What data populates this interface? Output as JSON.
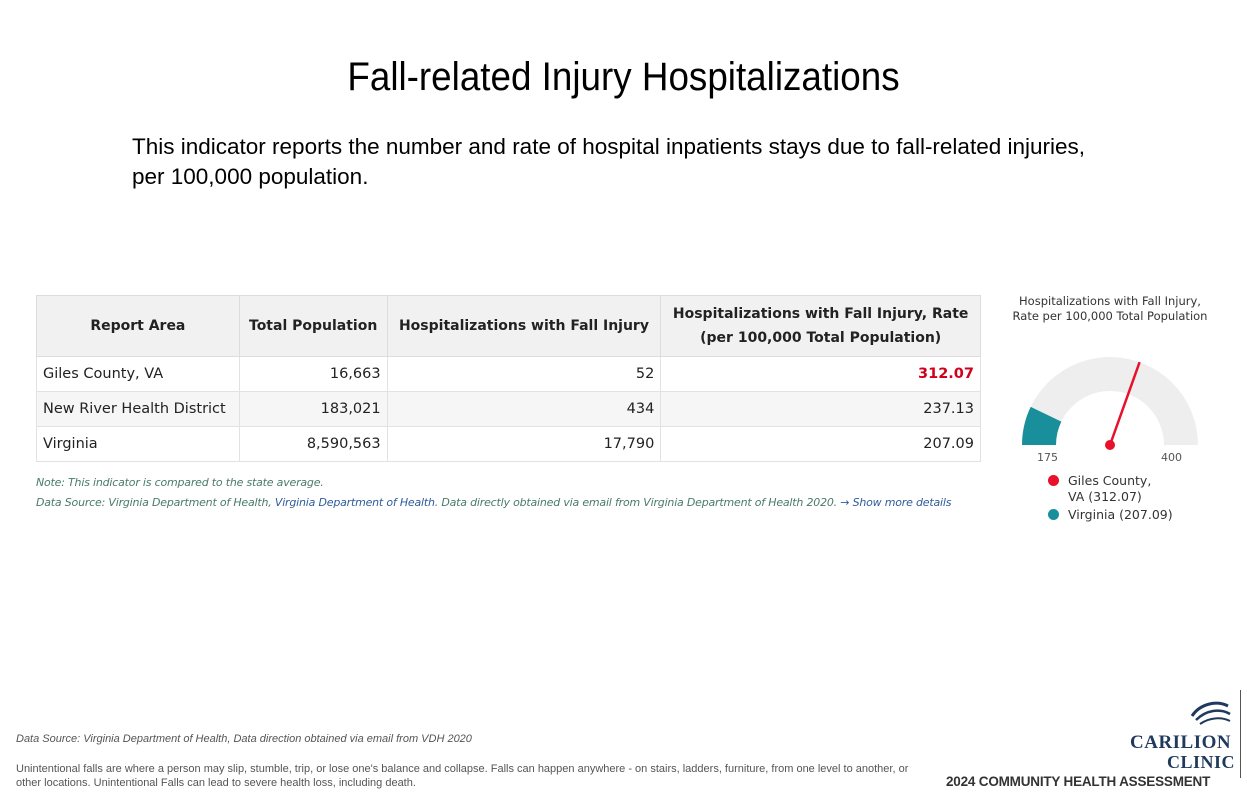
{
  "title": "Fall-related Injury Hospitalizations",
  "intro": "This indicator reports the number and rate of hospital inpatients stays due to fall-related injuries, per 100,000 population.",
  "table": {
    "headers": [
      "Report Area",
      "Total Population",
      "Hospitalizations with Fall Injury",
      "Hospitalizations with Fall Injury, Rate (per 100,000 Total Population)"
    ],
    "rows": [
      [
        "Giles County, VA",
        "16,663",
        "52",
        "312.07"
      ],
      [
        "New River Health District",
        "183,021",
        "434",
        "237.13"
      ],
      [
        "Virginia",
        "8,590,563",
        "17,790",
        "207.09"
      ]
    ]
  },
  "note": "Note: This indicator is compared to the state average.",
  "source": {
    "prefix": "Data Source: Virginia Department of Health,",
    "link": "Virginia Department of Health",
    "suffix": ". Data directly obtained via email from Virginia Department of Health 2020.",
    "more": "→  Show more details"
  },
  "chart_data": {
    "type": "gauge",
    "title": "Hospitalizations with Fall Injury, Rate per 100,000 Total Population",
    "min": 175,
    "max": 400,
    "min_label": "175",
    "max_label": "400",
    "series": [
      {
        "name": "Giles County, VA",
        "label": "Giles County, VA (312.07)",
        "value": 312.07,
        "color": "#e8102a",
        "mark": "needle"
      },
      {
        "name": "Virginia",
        "label": "Virginia (207.09)",
        "value": 207.09,
        "color": "#1a8f9c",
        "mark": "fill"
      }
    ],
    "track_color": "#eeeeee"
  },
  "footer": {
    "source": "Data Source: Virginia Department of Health, Data direction obtained via email from VDH 2020",
    "description": "Unintentional falls are where a person may slip, stumble, trip, or lose one's balance and collapse. Falls can happen anywhere - on stairs, ladders, furniture, from one level to another, or other locations. Unintentional Falls can lead to severe health loss, including death."
  },
  "brand": {
    "line1": "Carilion",
    "line2": "Clinic",
    "report": "2024 COMMUNITY HEALTH ASSESSMENT",
    "color": "#1f3a5c"
  }
}
